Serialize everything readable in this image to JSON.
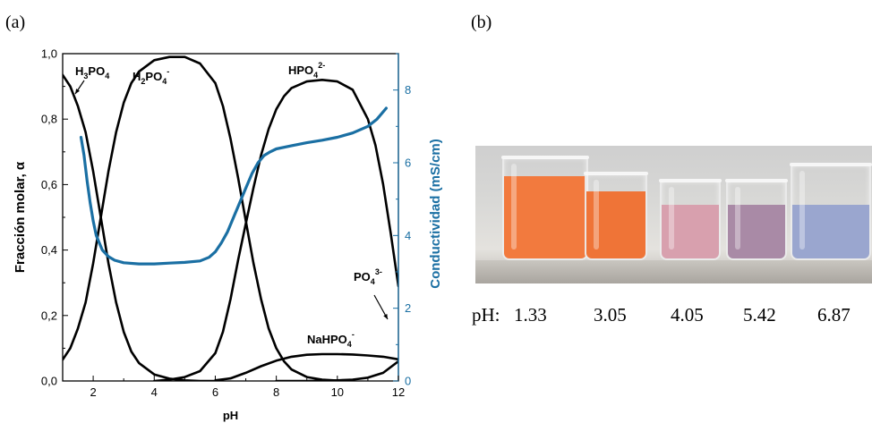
{
  "panels": {
    "a": "(a)",
    "b": "(b)"
  },
  "chart_data": {
    "type": "line",
    "xlabel": "pH",
    "ylabel_left": "Fracción molar, α",
    "ylabel_right": "Conductividad (mS/cm)",
    "xlim": [
      1,
      12
    ],
    "ylim_left": [
      0,
      1
    ],
    "ylim_right": [
      0,
      9
    ],
    "x_ticks": [
      "2",
      "4",
      "6",
      "8",
      "10",
      "12"
    ],
    "x_tick_values": [
      2,
      4,
      6,
      8,
      10,
      12
    ],
    "y_left_ticks": [
      "0,0",
      "0,2",
      "0,4",
      "0,6",
      "0,8",
      "1,0"
    ],
    "y_left_tick_values": [
      0,
      0.2,
      0.4,
      0.6,
      0.8,
      1.0
    ],
    "y_right_ticks": [
      "0",
      "2",
      "4",
      "6",
      "8"
    ],
    "y_right_tick_values": [
      0,
      2,
      4,
      6,
      8
    ],
    "series": [
      {
        "name": "H3PO4",
        "axis": "left",
        "color": "#000000",
        "x": [
          1.0,
          1.25,
          1.5,
          1.75,
          2.0,
          2.25,
          2.5,
          2.75,
          3.0,
          3.25,
          3.5,
          4.0,
          4.5,
          5.0,
          5.5,
          6.0
        ],
        "y": [
          0.935,
          0.9,
          0.84,
          0.76,
          0.64,
          0.5,
          0.36,
          0.24,
          0.15,
          0.09,
          0.055,
          0.02,
          0.007,
          0.002,
          0.0,
          0.0
        ]
      },
      {
        "name": "H2PO4-",
        "axis": "left",
        "color": "#000000",
        "x": [
          1.0,
          1.25,
          1.5,
          1.75,
          2.0,
          2.25,
          2.5,
          2.75,
          3.0,
          3.25,
          3.5,
          4.0,
          4.5,
          5.0,
          5.5,
          6.0,
          6.25,
          6.5,
          6.75,
          7.0,
          7.25,
          7.5,
          7.75,
          8.0,
          8.25,
          8.5,
          9.0,
          9.5,
          10.0
        ],
        "y": [
          0.065,
          0.1,
          0.16,
          0.24,
          0.36,
          0.5,
          0.64,
          0.76,
          0.85,
          0.91,
          0.945,
          0.98,
          0.99,
          0.99,
          0.97,
          0.91,
          0.84,
          0.74,
          0.62,
          0.49,
          0.36,
          0.25,
          0.16,
          0.1,
          0.06,
          0.035,
          0.012,
          0.004,
          0.001
        ]
      },
      {
        "name": "HPO42-",
        "axis": "left",
        "color": "#000000",
        "x": [
          4.0,
          4.5,
          5.0,
          5.5,
          6.0,
          6.25,
          6.5,
          6.75,
          7.0,
          7.25,
          7.5,
          7.75,
          8.0,
          8.25,
          8.5,
          9.0,
          9.5,
          10.0,
          10.5,
          11.0,
          11.25,
          11.5,
          11.75,
          12.0
        ],
        "y": [
          0.0,
          0.004,
          0.012,
          0.03,
          0.085,
          0.15,
          0.25,
          0.37,
          0.48,
          0.59,
          0.69,
          0.77,
          0.83,
          0.87,
          0.895,
          0.915,
          0.92,
          0.915,
          0.89,
          0.8,
          0.72,
          0.6,
          0.45,
          0.29
        ]
      },
      {
        "name": "NaHPO4-",
        "axis": "left",
        "color": "#000000",
        "x": [
          6.0,
          6.5,
          7.0,
          7.5,
          8.0,
          8.5,
          9.0,
          9.5,
          10.0,
          10.5,
          11.0,
          11.5,
          12.0
        ],
        "y": [
          0.002,
          0.008,
          0.025,
          0.045,
          0.062,
          0.074,
          0.08,
          0.082,
          0.082,
          0.081,
          0.078,
          0.074,
          0.066
        ]
      },
      {
        "name": "PO43-",
        "axis": "left",
        "color": "#000000",
        "x": [
          8.0,
          9.0,
          10.0,
          10.5,
          11.0,
          11.5,
          12.0
        ],
        "y": [
          0.0,
          0.0,
          0.002,
          0.004,
          0.01,
          0.025,
          0.06
        ]
      },
      {
        "name": "Conductividad",
        "axis": "right",
        "color": "#1a6fa3",
        "x": [
          1.6,
          1.7,
          1.8,
          1.9,
          2.0,
          2.1,
          2.2,
          2.3,
          2.5,
          2.7,
          3.0,
          3.5,
          4.0,
          4.5,
          5.0,
          5.5,
          5.8,
          6.0,
          6.2,
          6.4,
          6.6,
          6.8,
          7.0,
          7.2,
          7.4,
          7.6,
          7.8,
          8.0,
          8.5,
          9.0,
          9.5,
          10.0,
          10.5,
          11.0,
          11.3,
          11.6
        ],
        "y": [
          6.7,
          6.2,
          5.5,
          4.9,
          4.4,
          4.0,
          3.8,
          3.6,
          3.42,
          3.32,
          3.25,
          3.22,
          3.22,
          3.24,
          3.26,
          3.3,
          3.4,
          3.55,
          3.8,
          4.1,
          4.5,
          4.9,
          5.3,
          5.7,
          6.0,
          6.2,
          6.3,
          6.38,
          6.47,
          6.55,
          6.62,
          6.7,
          6.82,
          7.0,
          7.2,
          7.5
        ]
      }
    ],
    "annotations": [
      {
        "id": "h3po4",
        "main": "H",
        "sub1": "3",
        "mid": "PO",
        "sub2": "4",
        "sup": ""
      },
      {
        "id": "h2po4",
        "main": "H",
        "sub1": "2",
        "mid": "PO",
        "sub2": "4",
        "sup": "-"
      },
      {
        "id": "hpo4",
        "main": "HPO",
        "sub1": "4",
        "mid": "",
        "sub2": "",
        "sup": "2-"
      },
      {
        "id": "po4",
        "main": "PO",
        "sub1": "4",
        "mid": "",
        "sub2": "",
        "sup": "3-"
      },
      {
        "id": "nahpo4",
        "main": "NaHPO",
        "sub1": "4",
        "mid": "",
        "sub2": "",
        "sup": "-"
      }
    ]
  },
  "photo": {
    "beakers": [
      {
        "name": "beaker-1",
        "liquid_color": "#f27a3e"
      },
      {
        "name": "beaker-2",
        "liquid_color": "#ef7437"
      },
      {
        "name": "beaker-3",
        "liquid_color": "#d8a0ae"
      },
      {
        "name": "beaker-4",
        "liquid_color": "#a98aa6"
      },
      {
        "name": "beaker-5",
        "liquid_color": "#9aa6cf"
      }
    ],
    "ph_label": "pH:",
    "ph_values": [
      "1.33",
      "3.05",
      "4.05",
      "5.42",
      "6.87"
    ]
  }
}
